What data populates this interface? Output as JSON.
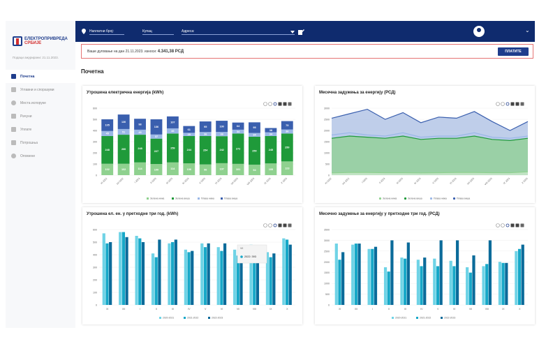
{
  "sidebar": {
    "logo_line1": "ЕЛЕКТРОПРИВРЕДА",
    "logo_line2": "СРБИЈЕ",
    "updated": "Подаци ажурирани: 21.11.2023.",
    "items": [
      {
        "label": "Почетна",
        "icon": "home-icon"
      },
      {
        "label": "Углавни и споразуми",
        "icon": "document-icon"
      },
      {
        "label": "Места испоруке",
        "icon": "location-icon"
      },
      {
        "label": "Рачуни",
        "icon": "invoice-icon"
      },
      {
        "label": "Уплате",
        "icon": "payment-icon"
      },
      {
        "label": "Потрошња",
        "icon": "chart-icon"
      },
      {
        "label": "Опомене",
        "icon": "warning-icon"
      }
    ]
  },
  "topbar": {
    "field1": "Наплатни број:",
    "field2": "Купац",
    "field3": "Адреса:"
  },
  "debt": {
    "text": "Ваше дуговање на дан 21.11.2023. износи:",
    "amount": "4.341,38 РСД",
    "pay_label": "ПЛАТИТЕ"
  },
  "page_title": "Почетна",
  "charts": {
    "c1_title": "Утрошена електрична енергија (kWh)",
    "c2_title": "Месечна задужења за енергију (РСД)",
    "c3_title": "Утрошена ел. ен. у претходне три год. (kWh)",
    "c4_title": "Месечно задужење за енергију у претходне три год. (РСД)",
    "tooltip_label": "VII",
    "tooltip_value": "2022: 393"
  },
  "colors": {
    "green_light": "#8fd18f",
    "green_dark": "#1f9a3a",
    "blue_light": "#9ab7e6",
    "blue_dark": "#3a5fae",
    "c1": "#6fd3e6",
    "c2": "#17a8c8",
    "c3": "#0b6b9a"
  },
  "chart_data": [
    {
      "type": "bar",
      "title": "Утрошена електрична енергија (kWh)",
      "categories": [
        "XI 2022",
        "XII 2022",
        "I 2023",
        "II 2023",
        "III 2023",
        "IV 2023",
        "V 2023",
        "VI 2023",
        "VII 2023",
        "VIII 2023",
        "IX 2023",
        "X 2023"
      ],
      "series": [
        {
          "name": "Зелена нижа",
          "values": [
            102,
            102,
            114,
            100,
            114,
            106,
            96,
            107,
            101,
            94,
            105,
            123
          ]
        },
        {
          "name": "Зелена виша",
          "values": [
            248,
            260,
            248,
            227,
            259,
            244,
            254,
            242,
            272,
            250,
            245,
            250
          ]
        },
        {
          "name": "Плава нижа",
          "values": [
            45,
            51,
            45,
            37,
            46,
            29,
            36,
            38,
            34,
            34,
            34,
            36
          ]
        },
        {
          "name": "Плава виша",
          "values": [
            105,
            130,
            98,
            136,
            107,
            61,
            95,
            100,
            64,
            95,
            38,
            75
          ]
        }
      ],
      "ylim": [
        0,
        600
      ],
      "legend": "bottom"
    },
    {
      "type": "area",
      "title": "Месечна задужења за енергију (РСД)",
      "categories": [
        "XI 2022",
        "XII 2022",
        "I 2023",
        "II 2023",
        "III 2023",
        "IV 2023",
        "V 2023",
        "VI 2023",
        "VII 2023",
        "VIII 2023",
        "IX 2023",
        "X 2023"
      ],
      "series": [
        {
          "name": "Зелена нижа",
          "values": [
            100,
            120,
            120,
            110,
            110,
            100,
            110,
            120,
            120,
            110,
            110,
            150
          ]
        },
        {
          "name": "Зелена виша",
          "values": [
            1650,
            1750,
            1700,
            1650,
            1750,
            1600,
            1650,
            1650,
            1750,
            1600,
            1550,
            1650
          ]
        },
        {
          "name": "Плава нижа",
          "values": [
            1800,
            1900,
            1800,
            1750,
            1900,
            1700,
            1750,
            1750,
            1900,
            1700,
            1650,
            1750
          ]
        },
        {
          "name": "Плава виша",
          "values": [
            2550,
            2750,
            2950,
            2500,
            2800,
            2350,
            2600,
            2550,
            2850,
            2400,
            2000,
            2400
          ]
        }
      ],
      "ylim": [
        0,
        3000
      ],
      "legend": "bottom"
    },
    {
      "type": "bar",
      "title": "Утрошена ел. ен. у претходне три год. (kWh)",
      "categories": [
        "XI",
        "XII",
        "I",
        "II",
        "III",
        "IV",
        "V",
        "VI",
        "VII",
        "VIII",
        "IX",
        "X"
      ],
      "series": [
        {
          "name": "2020-2021",
          "values": [
            570,
            580,
            550,
            410,
            490,
            440,
            490,
            460,
            440,
            480,
            420,
            530
          ]
        },
        {
          "name": "2021-2022",
          "values": [
            490,
            580,
            530,
            380,
            500,
            420,
            460,
            430,
            393,
            470,
            380,
            520
          ]
        },
        {
          "name": "2022-2023",
          "values": [
            500,
            540,
            500,
            520,
            520,
            430,
            490,
            490,
            400,
            450,
            410,
            480
          ]
        }
      ],
      "ylim": [
        0,
        600
      ],
      "legend": "bottom"
    },
    {
      "type": "bar",
      "title": "Месечно задужење за енергију у претходне три год. (РСД)",
      "categories": [
        "XI",
        "XII",
        "I",
        "II",
        "III",
        "IV",
        "V",
        "VI",
        "VII",
        "VIII",
        "IX",
        "X"
      ],
      "series": [
        {
          "name": "2020-2021",
          "values": [
            2850,
            2800,
            2600,
            1750,
            2200,
            2100,
            2150,
            2050,
            1750,
            1800,
            2000,
            2500
          ]
        },
        {
          "name": "2021-2022",
          "values": [
            2100,
            2850,
            2600,
            1550,
            2150,
            1800,
            1800,
            1800,
            1500,
            1900,
            1950,
            2600
          ]
        },
        {
          "name": "2022-2023",
          "values": [
            2450,
            2850,
            2700,
            3000,
            2900,
            2200,
            3000,
            3000,
            2300,
            3000,
            1950,
            2800
          ]
        }
      ],
      "ylim": [
        0,
        3500
      ],
      "legend": "bottom"
    }
  ]
}
